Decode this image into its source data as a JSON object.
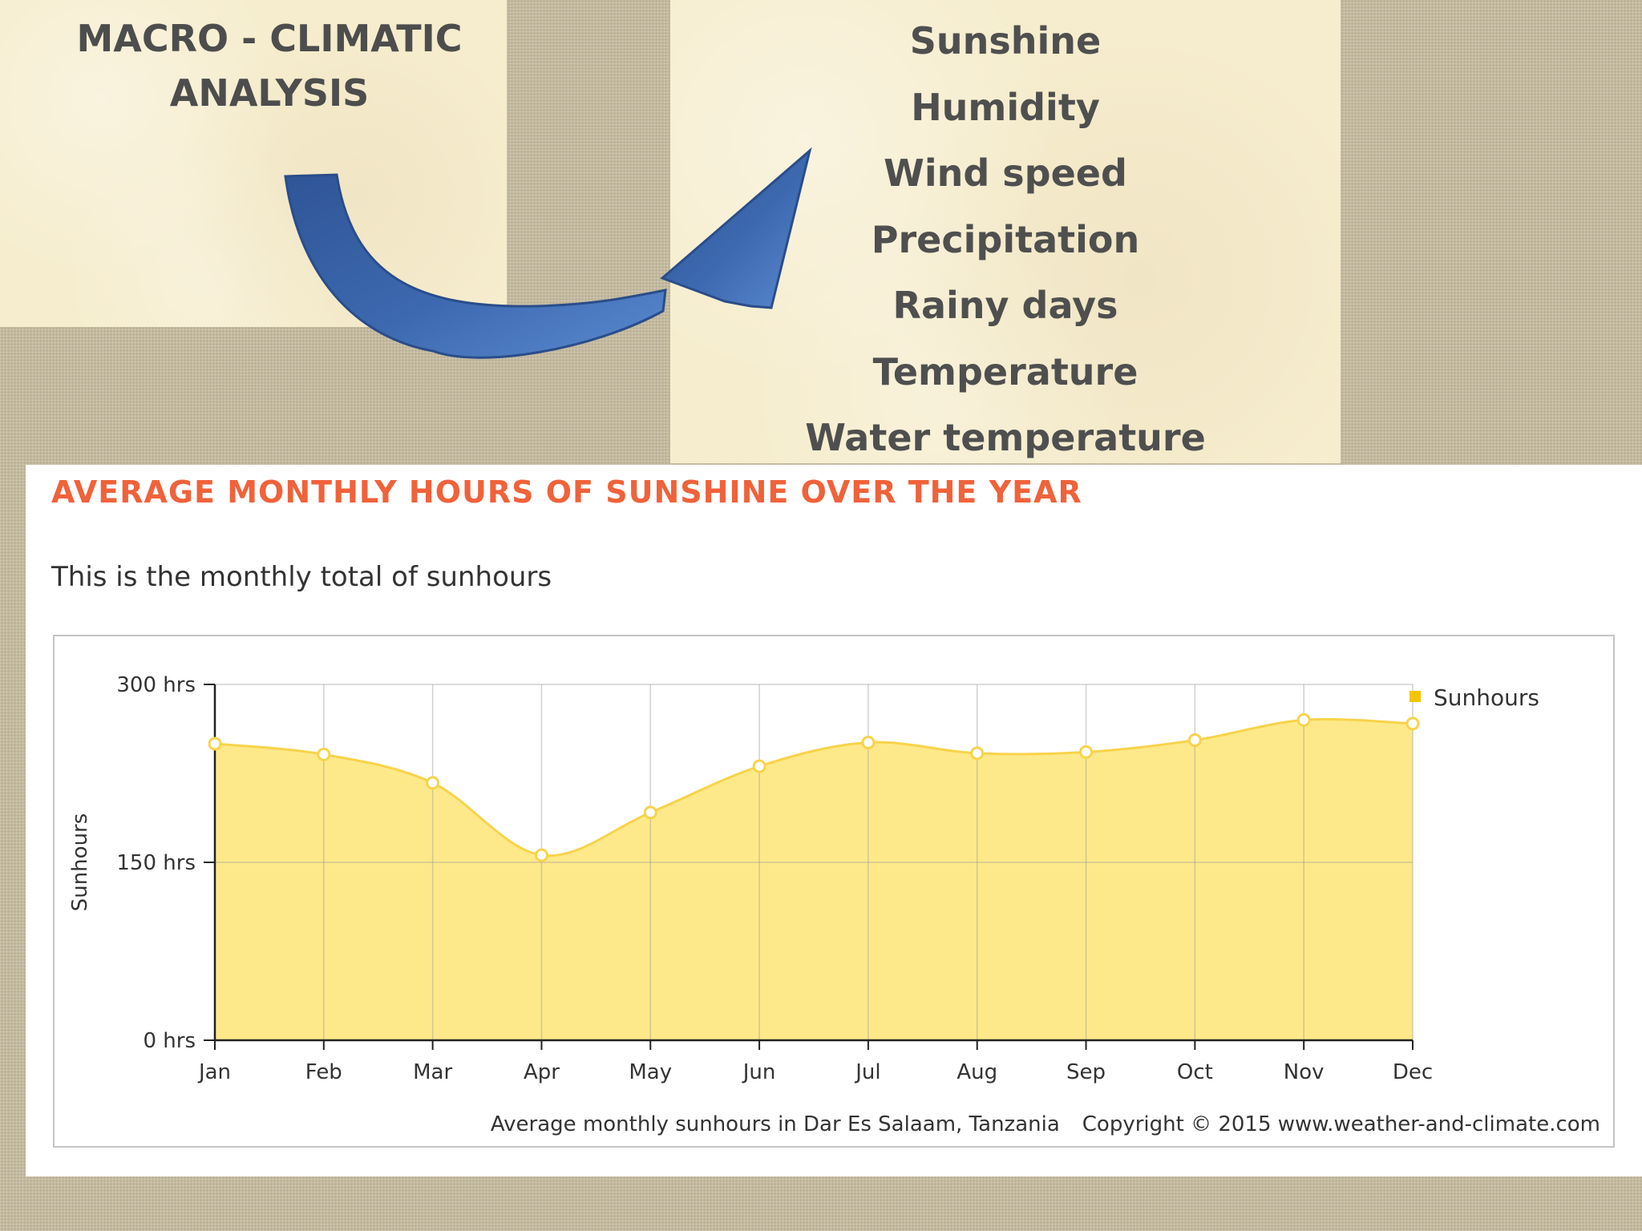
{
  "slide": {
    "title_line1": "MACRO - CLIMATIC",
    "title_line2": "ANALYSIS",
    "factors": [
      "Sunshine",
      "Humidity",
      "Wind speed",
      "Precipitation",
      "Rainy days",
      "Temperature",
      "Water temperature"
    ]
  },
  "colors": {
    "title_text": "#4d4d4d",
    "arrow_blue": "#4a77be",
    "heading_orange": "#f0623a",
    "series_fill": "#fee98a",
    "series_line": "#f8d34a",
    "legend_swatch": "#f5c400"
  },
  "chart": {
    "heading": "AVERAGE MONTHLY HOURS OF SUNSHINE OVER THE YEAR",
    "subheading": "This is the monthly total of sunhours",
    "footer_source": "Average monthly sunhours in Dar Es Salaam, Tanzania",
    "footer_copyright": "Copyright © 2015 www.weather-and-climate.com"
  },
  "chart_data": {
    "type": "area",
    "title": "AVERAGE MONTHLY HOURS OF SUNSHINE OVER THE YEAR",
    "subtitle": "This is the monthly total of sunhours",
    "categories": [
      "Jan",
      "Feb",
      "Mar",
      "Apr",
      "May",
      "Jun",
      "Jul",
      "Aug",
      "Sep",
      "Oct",
      "Nov",
      "Dec"
    ],
    "series": [
      {
        "name": "Sunhours",
        "values": [
          250,
          241,
          217,
          156,
          192,
          231,
          251,
          242,
          243,
          253,
          270,
          267
        ]
      }
    ],
    "ylabel": "Sunhours",
    "ylim": [
      0,
      300
    ],
    "yticks": [
      0,
      150,
      300
    ],
    "ytick_labels": [
      "0 hrs",
      "150 hrs",
      "300 hrs"
    ],
    "grid": true,
    "legend": "right",
    "smooth": true,
    "markers": true
  }
}
